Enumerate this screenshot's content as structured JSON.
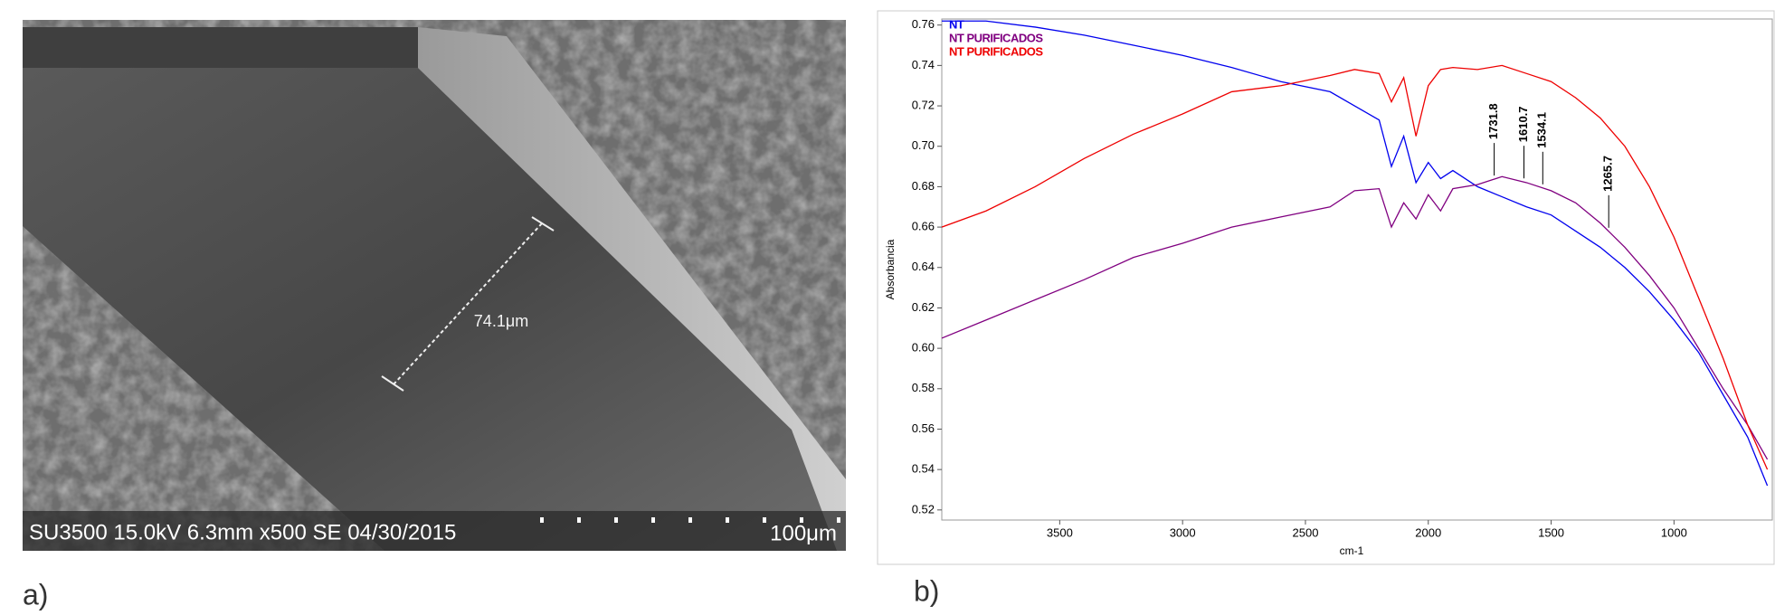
{
  "image": {
    "measurement": "74.1μm",
    "caption": "SU3500 15.0kV 6.3mm x500 SE 04/30/2015",
    "scale_bar": "100μm"
  },
  "panel_labels": [
    "a)",
    "b)"
  ],
  "chart_data": {
    "type": "line",
    "x_label": "cm-1",
    "y_label": "Absorbancia",
    "x": [
      3980,
      3800,
      3600,
      3400,
      3200,
      3000,
      2800,
      2600,
      2400,
      2300,
      2200,
      2150,
      2100,
      2050,
      2000,
      1950,
      1900,
      1800,
      1700,
      1600,
      1500,
      1400,
      1300,
      1200,
      1100,
      1000,
      900,
      800,
      700,
      620
    ],
    "series": [
      {
        "name": "NT",
        "color": "#0000ee",
        "values": [
          0.762,
          0.762,
          0.759,
          0.755,
          0.75,
          0.745,
          0.739,
          0.732,
          0.727,
          0.72,
          0.713,
          0.69,
          0.705,
          0.682,
          0.692,
          0.684,
          0.688,
          0.68,
          0.675,
          0.67,
          0.666,
          0.658,
          0.65,
          0.64,
          0.628,
          0.614,
          0.598,
          0.577,
          0.556,
          0.532
        ]
      },
      {
        "name": "NT PURIFICADOS",
        "color": "#800080",
        "values": [
          0.605,
          0.614,
          0.624,
          0.634,
          0.645,
          0.652,
          0.66,
          0.665,
          0.67,
          0.678,
          0.679,
          0.66,
          0.672,
          0.664,
          0.676,
          0.668,
          0.679,
          0.681,
          0.685,
          0.682,
          0.678,
          0.672,
          0.662,
          0.65,
          0.636,
          0.62,
          0.6,
          0.58,
          0.562,
          0.545
        ]
      },
      {
        "name": "NT PURIFICADOS",
        "color": "#ee0000",
        "values": [
          0.66,
          0.668,
          0.68,
          0.694,
          0.706,
          0.716,
          0.727,
          0.73,
          0.735,
          0.738,
          0.736,
          0.722,
          0.734,
          0.705,
          0.73,
          0.738,
          0.739,
          0.738,
          0.74,
          0.736,
          0.732,
          0.724,
          0.714,
          0.7,
          0.68,
          0.655,
          0.625,
          0.595,
          0.562,
          0.54
        ]
      }
    ],
    "annotations": [
      "1731.8",
      "1610.7",
      "1534.1",
      "1265.7"
    ],
    "xlim": [
      3980,
      600
    ],
    "ylim": [
      0.515,
      0.763
    ],
    "xticks": [
      3500,
      3000,
      2500,
      2000,
      1500,
      1000
    ],
    "yticks": [
      0.52,
      0.54,
      0.56,
      0.58,
      {
        "value": 0.6,
        "label": "0.60"
      },
      0.62,
      0.64,
      0.66,
      0.68,
      {
        "value": 0.7,
        "label": "0.70"
      },
      0.72,
      0.74,
      0.76
    ],
    "legend": "upper left"
  }
}
